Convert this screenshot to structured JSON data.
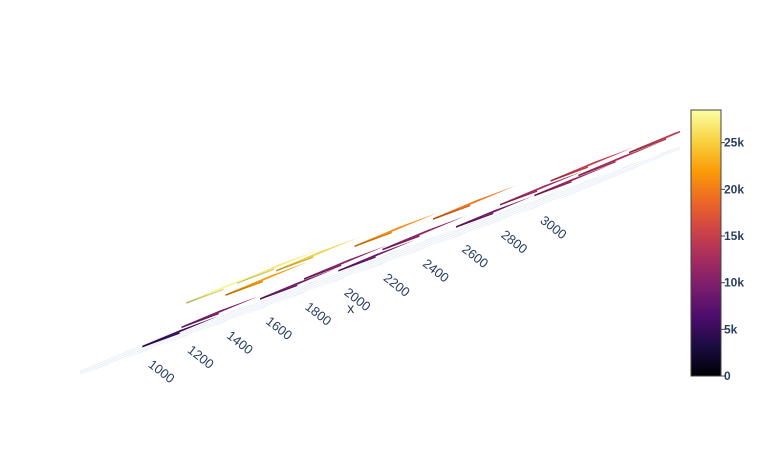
{
  "chart_data": {
    "type": "bar3d",
    "xlabel": "x",
    "x_ticks": [
      "1000",
      "1200",
      "1400",
      "1600",
      "1800",
      "2000",
      "2200",
      "2400",
      "2600",
      "2800",
      "3000"
    ],
    "colorscale": "Inferno",
    "colorbar": {
      "range": [
        0,
        28500
      ],
      "ticks": [
        "0",
        "5k",
        "10k",
        "15k",
        "20k",
        "25k"
      ],
      "tick_values": [
        0,
        5000,
        10000,
        15000,
        20000,
        25000
      ]
    },
    "bars": [
      {
        "x": 1000,
        "layer": 0,
        "value": 5000
      },
      {
        "x": 1000,
        "layer": 1,
        "value": 28000
      },
      {
        "x": 1000,
        "layer": 2,
        "value": 27000
      },
      {
        "x": 1200,
        "layer": 0,
        "value": 9500
      },
      {
        "x": 1200,
        "layer": 1,
        "value": 22000
      },
      {
        "x": 1200,
        "layer": 2,
        "value": 25000
      },
      {
        "x": 1600,
        "layer": 0,
        "value": 9000
      },
      {
        "x": 1600,
        "layer": 1,
        "value": 10500
      },
      {
        "x": 1600,
        "layer": 2,
        "value": 21000
      },
      {
        "x": 2000,
        "layer": 0,
        "value": 8500
      },
      {
        "x": 2000,
        "layer": 1,
        "value": 11000
      },
      {
        "x": 2000,
        "layer": 2,
        "value": 19500
      },
      {
        "x": 2600,
        "layer": 0,
        "value": 9000
      },
      {
        "x": 2600,
        "layer": 1,
        "value": 12500
      },
      {
        "x": 2600,
        "layer": 2,
        "value": 15000
      },
      {
        "x": 3000,
        "layer": 0,
        "value": 11500
      },
      {
        "x": 3000,
        "layer": 1,
        "value": 13000
      },
      {
        "x": 3000,
        "layer": 2,
        "value": 14500
      }
    ]
  }
}
